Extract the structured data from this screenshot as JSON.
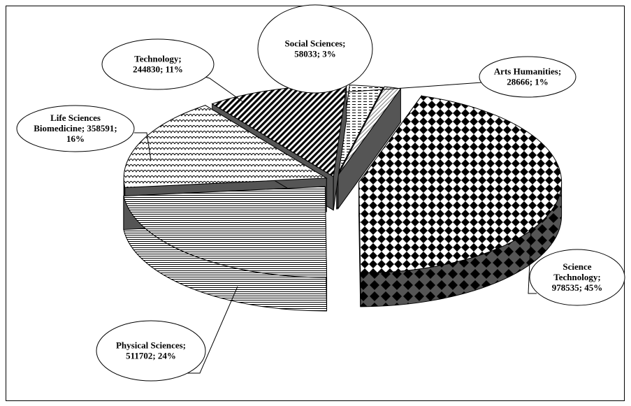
{
  "chart_data": {
    "type": "pie",
    "title": "",
    "three_d": true,
    "exploded": true,
    "legend": "none",
    "slices": [
      {
        "name": "Science Technology",
        "value": 978535,
        "percent": "45%",
        "label_lines": [
          "Science",
          "Technology;",
          "978535; 45%"
        ]
      },
      {
        "name": "Physical Sciences",
        "value": 511702,
        "percent": "24%",
        "label_lines": [
          "Physical Sciences;",
          "511702; 24%"
        ]
      },
      {
        "name": "Life Sciences Biomedicine",
        "value": 358591,
        "percent": "16%",
        "label_lines": [
          "Life Sciences",
          "Biomedicine; 358591;",
          "16%"
        ]
      },
      {
        "name": "Technology",
        "value": 244830,
        "percent": "11%",
        "label_lines": [
          "Technology;",
          "244830; 11%"
        ]
      },
      {
        "name": "Social Sciences",
        "value": 58033,
        "percent": "3%",
        "label_lines": [
          "Social Sciences;",
          "58033; 3%"
        ]
      },
      {
        "name": "Arts Humanities",
        "value": 28666,
        "percent": "1%",
        "label_lines": [
          "Arts Humanities;",
          "28666; 1%"
        ]
      }
    ]
  }
}
